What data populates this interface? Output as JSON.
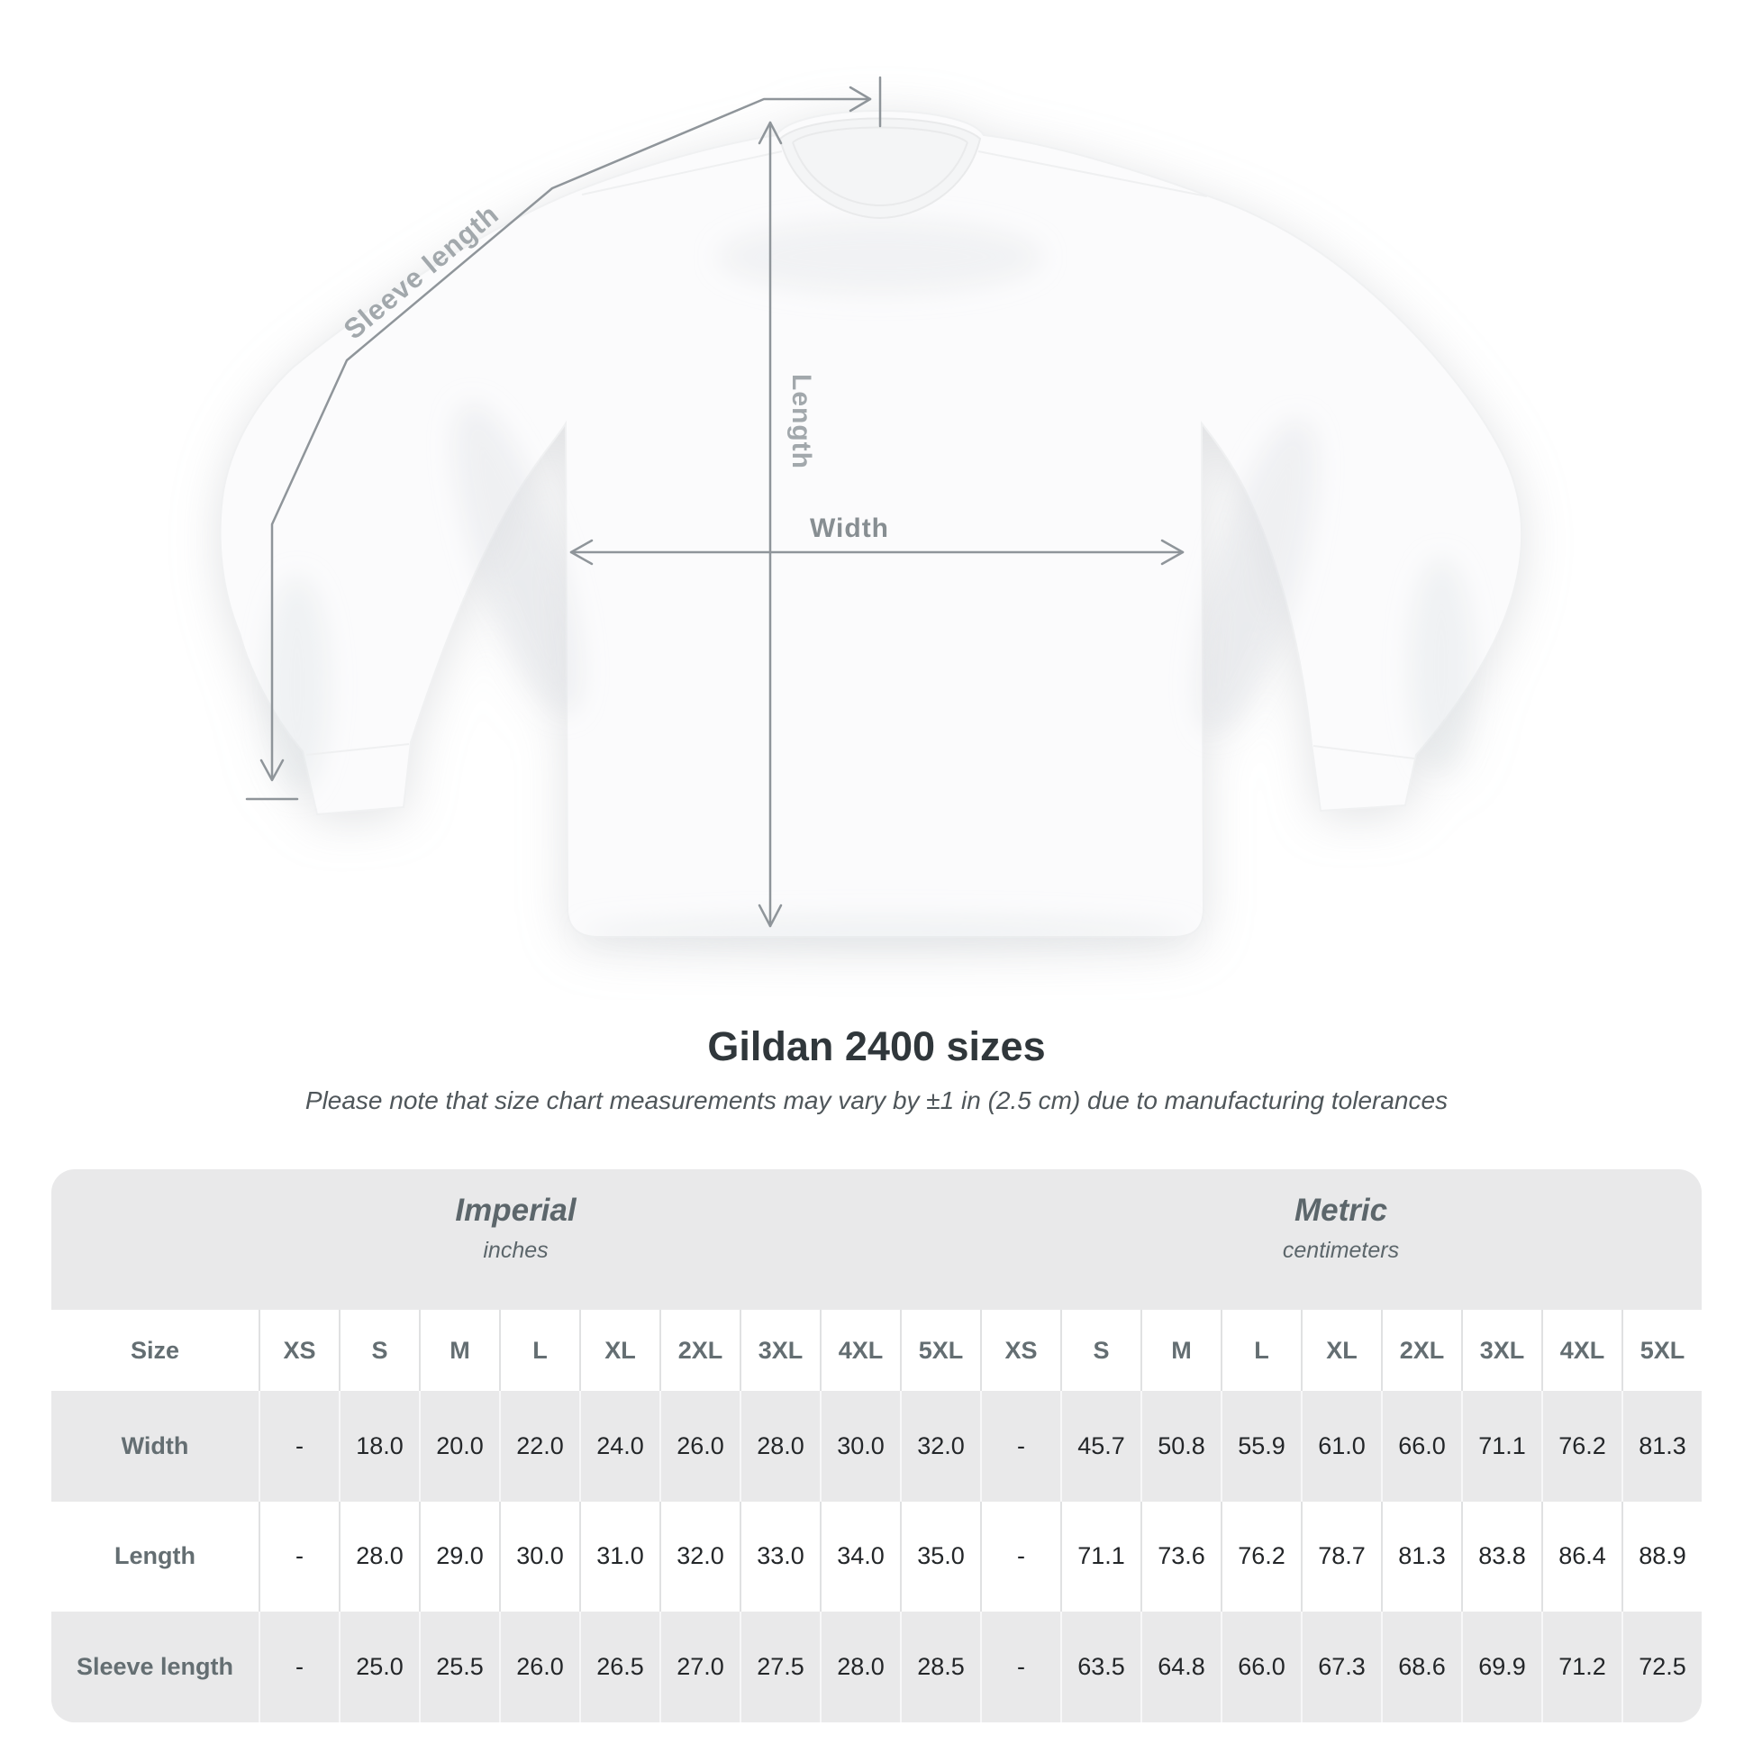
{
  "diagram": {
    "sleeve_label": "Sleeve length",
    "length_label": "Length",
    "width_label": "Width",
    "line_color": "#8f959a",
    "shirt_color": "#fbfbfc"
  },
  "title": "Gildan 2400 sizes",
  "subtitle": "Please note that size chart measurements may vary by ±1 in (2.5 cm) due to manufacturing tolerances",
  "table": {
    "panel_color": "#e9e9ea",
    "unit_groups": [
      {
        "name": "Imperial",
        "unit": "inches"
      },
      {
        "name": "Metric",
        "unit": "centimeters"
      }
    ],
    "size_header": "Size",
    "sizes": [
      "XS",
      "S",
      "M",
      "L",
      "XL",
      "2XL",
      "3XL",
      "4XL",
      "5XL"
    ],
    "rows": [
      {
        "label": "Width",
        "imperial": [
          "-",
          "18.0",
          "20.0",
          "22.0",
          "24.0",
          "26.0",
          "28.0",
          "30.0",
          "32.0"
        ],
        "metric": [
          "-",
          "45.7",
          "50.8",
          "55.9",
          "61.0",
          "66.0",
          "71.1",
          "76.2",
          "81.3"
        ]
      },
      {
        "label": "Length",
        "imperial": [
          "-",
          "28.0",
          "29.0",
          "30.0",
          "31.0",
          "32.0",
          "33.0",
          "34.0",
          "35.0"
        ],
        "metric": [
          "-",
          "71.1",
          "73.6",
          "76.2",
          "78.7",
          "81.3",
          "83.8",
          "86.4",
          "88.9"
        ]
      },
      {
        "label": "Sleeve length",
        "imperial": [
          "-",
          "25.0",
          "25.5",
          "26.0",
          "26.5",
          "27.0",
          "27.5",
          "28.0",
          "28.5"
        ],
        "metric": [
          "-",
          "63.5",
          "64.8",
          "66.0",
          "67.3",
          "68.6",
          "69.9",
          "71.2",
          "72.5"
        ]
      }
    ]
  }
}
